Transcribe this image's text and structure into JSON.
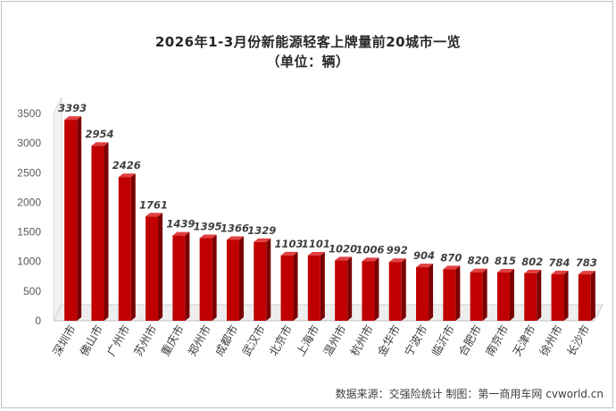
{
  "chart_data": {
    "type": "bar",
    "title": "2026年1-3月份新能源轻客上牌量前20城市一览",
    "subtitle": "（单位：辆）",
    "xlabel": "",
    "ylabel": "",
    "ylim": [
      0,
      3500
    ],
    "yticks": [
      0,
      500,
      1000,
      1500,
      2000,
      2500,
      3000,
      3500
    ],
    "grid": false,
    "categories": [
      "深圳市",
      "佛山市",
      "广州市",
      "苏州市",
      "重庆市",
      "郑州市",
      "成都市",
      "武汉市",
      "北京市",
      "上海市",
      "温州市",
      "杭州市",
      "金华市",
      "宁波市",
      "临沂市",
      "合肥市",
      "南京市",
      "天津市",
      "徐州市",
      "长沙市"
    ],
    "values": [
      3393,
      2954,
      2426,
      1761,
      1439,
      1395,
      1366,
      1329,
      1103,
      1101,
      1020,
      1006,
      992,
      904,
      870,
      820,
      815,
      802,
      784,
      783
    ],
    "bar_color": "#c00000",
    "source": "数据来源：交强险统计  制图：第一商用车网 cvworld.cn"
  }
}
